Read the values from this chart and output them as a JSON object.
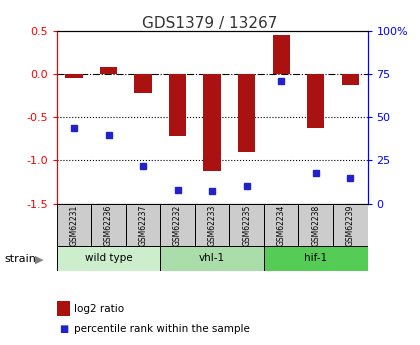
{
  "title": "GDS1379 / 13267",
  "samples": [
    "GSM62231",
    "GSM62236",
    "GSM62237",
    "GSM62232",
    "GSM62233",
    "GSM62235",
    "GSM62234",
    "GSM62238",
    "GSM62239"
  ],
  "log2_ratio": [
    -0.04,
    0.08,
    -0.22,
    -0.72,
    -1.12,
    -0.9,
    0.46,
    -0.62,
    -0.12
  ],
  "percentile_rank": [
    44,
    40,
    22,
    8,
    7,
    10,
    71,
    18,
    15
  ],
  "ylim_left": [
    -1.5,
    0.5
  ],
  "ylim_right": [
    0,
    100
  ],
  "yticks_left": [
    -1.5,
    -1.0,
    -0.5,
    0.0,
    0.5
  ],
  "yticks_right": [
    0,
    25,
    50,
    75,
    100
  ],
  "ytick_labels_right": [
    "0",
    "25",
    "50",
    "75",
    "100%"
  ],
  "hline_y": 0.0,
  "dotted_lines": [
    -0.5,
    -1.0
  ],
  "bar_color": "#aa1111",
  "dot_color": "#2222cc",
  "bar_width": 0.5,
  "groups": [
    {
      "label": "wild type",
      "start": 0,
      "end": 2,
      "color": "#cceecc"
    },
    {
      "label": "vhl-1",
      "start": 3,
      "end": 5,
      "color": "#aaddaa"
    },
    {
      "label": "hif-1",
      "start": 6,
      "end": 8,
      "color": "#55cc55"
    }
  ],
  "group_colors": [
    "#cceecc",
    "#aaddaa",
    "#55cc55"
  ],
  "sample_box_color": "#cccccc",
  "legend_bar_label": "log2 ratio",
  "legend_dot_label": "percentile rank within the sample",
  "strain_label": "strain"
}
